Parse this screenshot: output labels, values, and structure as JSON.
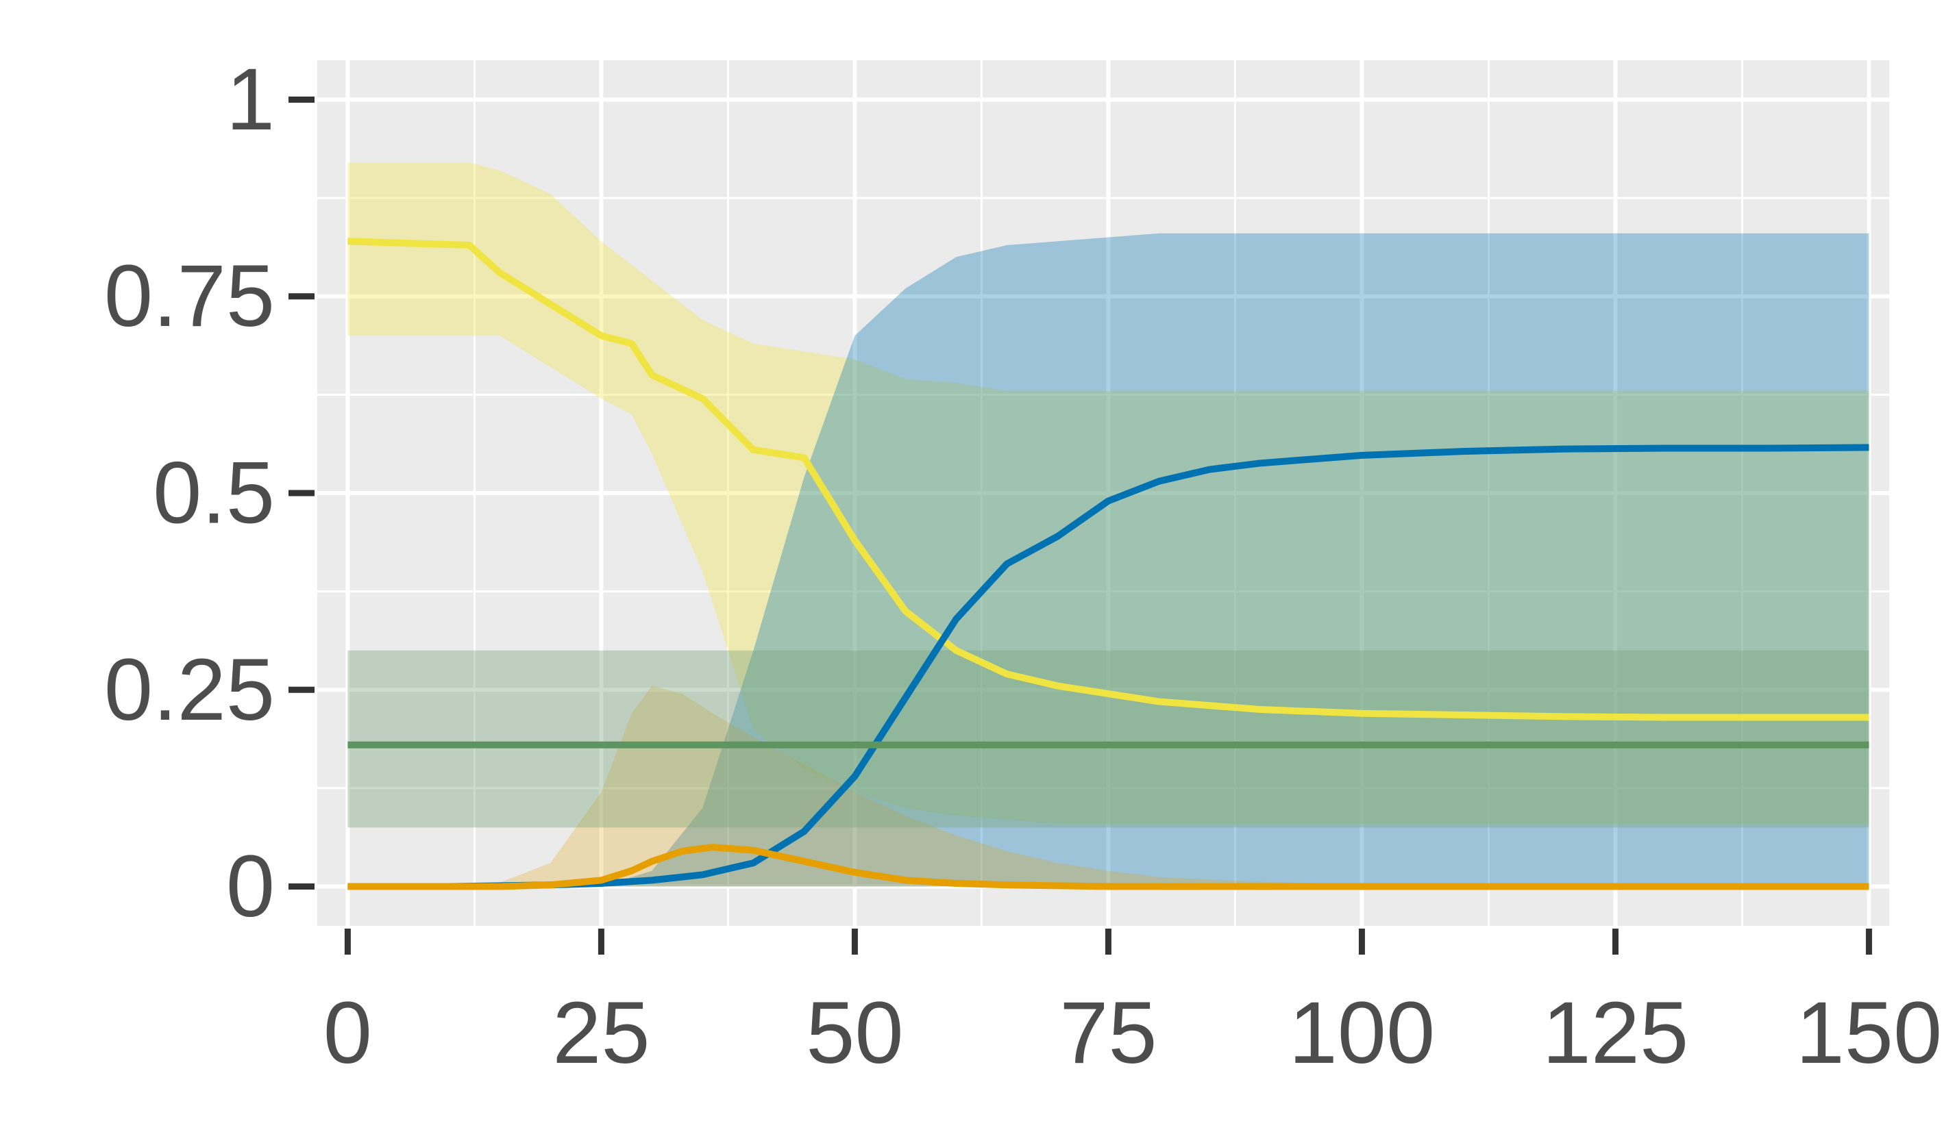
{
  "chart_data": {
    "type": "line",
    "title": "",
    "xlabel": "",
    "ylabel": "",
    "xlim": [
      -3,
      152
    ],
    "ylim": [
      -0.05,
      1.05
    ],
    "x_ticks": [
      0,
      25,
      50,
      75,
      100,
      125,
      150
    ],
    "x_tick_labels": [
      "0",
      "25",
      "50",
      "75",
      "100",
      "125",
      "150"
    ],
    "y_ticks": [
      0,
      0.25,
      0.5,
      0.75,
      1
    ],
    "y_tick_labels": [
      "0",
      "0.25",
      "0.5",
      "0.75",
      "1"
    ],
    "grid": true,
    "colors": {
      "panel_bg": "#ebebeb",
      "grid_major": "#ffffff",
      "axis_text": "#4d4d4d",
      "tick": "#333333"
    },
    "series": [
      {
        "color": "#f0e442",
        "band_opacity": 0.35,
        "x": [
          0,
          12,
          15,
          20,
          25,
          28,
          30,
          35,
          40,
          45,
          50,
          55,
          60,
          65,
          70,
          75,
          80,
          90,
          100,
          110,
          120,
          130,
          140,
          150
        ],
        "y": [
          0.82,
          0.815,
          0.78,
          0.74,
          0.7,
          0.69,
          0.65,
          0.62,
          0.555,
          0.545,
          0.44,
          0.35,
          0.3,
          0.27,
          0.255,
          0.245,
          0.235,
          0.225,
          0.22,
          0.218,
          0.216,
          0.215,
          0.215,
          0.215
        ],
        "lower": [
          0.7,
          0.7,
          0.7,
          0.66,
          0.62,
          0.6,
          0.55,
          0.4,
          0.2,
          0.15,
          0.12,
          0.1,
          0.09,
          0.085,
          0.08,
          0.08,
          0.08,
          0.08,
          0.08,
          0.08,
          0.08,
          0.08,
          0.08,
          0.08
        ],
        "upper": [
          0.92,
          0.92,
          0.91,
          0.88,
          0.82,
          0.79,
          0.77,
          0.72,
          0.69,
          0.68,
          0.67,
          0.645,
          0.64,
          0.63,
          0.63,
          0.63,
          0.63,
          0.63,
          0.63,
          0.63,
          0.63,
          0.63,
          0.63,
          0.63
        ]
      },
      {
        "color": "#0072b2",
        "band_opacity": 0.33,
        "x": [
          0,
          10,
          20,
          25,
          30,
          35,
          40,
          45,
          50,
          55,
          60,
          65,
          70,
          75,
          80,
          85,
          90,
          100,
          110,
          120,
          130,
          140,
          150
        ],
        "y": [
          0.0,
          0.0,
          0.002,
          0.004,
          0.008,
          0.015,
          0.03,
          0.07,
          0.14,
          0.24,
          0.34,
          0.41,
          0.445,
          0.49,
          0.515,
          0.53,
          0.538,
          0.548,
          0.553,
          0.556,
          0.557,
          0.557,
          0.558
        ],
        "lower": [
          0.0,
          0.0,
          0.0,
          0.0,
          0.0,
          0.0,
          0.0,
          0.0,
          0.0,
          0.0,
          0.0,
          0.0,
          0.0,
          0.0,
          0.0,
          0.0,
          0.0,
          0.0,
          0.0,
          0.0,
          0.0,
          0.0,
          0.0
        ],
        "upper": [
          0.0,
          0.0,
          0.0,
          0.0,
          0.02,
          0.1,
          0.3,
          0.52,
          0.7,
          0.76,
          0.8,
          0.815,
          0.82,
          0.825,
          0.83,
          0.83,
          0.83,
          0.83,
          0.83,
          0.83,
          0.83,
          0.83,
          0.83
        ]
      },
      {
        "color": "#e69f00",
        "band_opacity": 0.25,
        "x": [
          0,
          10,
          15,
          20,
          25,
          28,
          30,
          33,
          36,
          40,
          45,
          50,
          55,
          60,
          65,
          70,
          75,
          80,
          90,
          100,
          120,
          150
        ],
        "y": [
          0.0,
          0.0,
          0.0,
          0.002,
          0.008,
          0.02,
          0.032,
          0.045,
          0.05,
          0.046,
          0.032,
          0.018,
          0.008,
          0.004,
          0.002,
          0.001,
          0.0,
          0.0,
          0.0,
          0.0,
          0.0,
          0.0
        ],
        "lower": [
          0.0,
          0.0,
          0.0,
          0.0,
          0.0,
          0.0,
          0.0,
          0.0,
          0.0,
          0.0,
          0.0,
          0.0,
          0.0,
          0.0,
          0.0,
          0.0,
          0.0,
          0.0,
          0.0,
          0.0,
          0.0,
          0.0
        ],
        "upper": [
          0.0,
          0.0,
          0.005,
          0.03,
          0.12,
          0.22,
          0.255,
          0.245,
          0.22,
          0.19,
          0.155,
          0.12,
          0.09,
          0.065,
          0.045,
          0.03,
          0.02,
          0.012,
          0.006,
          0.003,
          0.001,
          0.0
        ]
      },
      {
        "color": "#5e9460",
        "band_color": "#7aa37a",
        "band_opacity": 0.38,
        "x": [
          0,
          150
        ],
        "y": [
          0.18,
          0.18
        ],
        "lower": [
          0.075,
          0.075
        ],
        "upper": [
          0.3,
          0.3
        ]
      }
    ]
  }
}
